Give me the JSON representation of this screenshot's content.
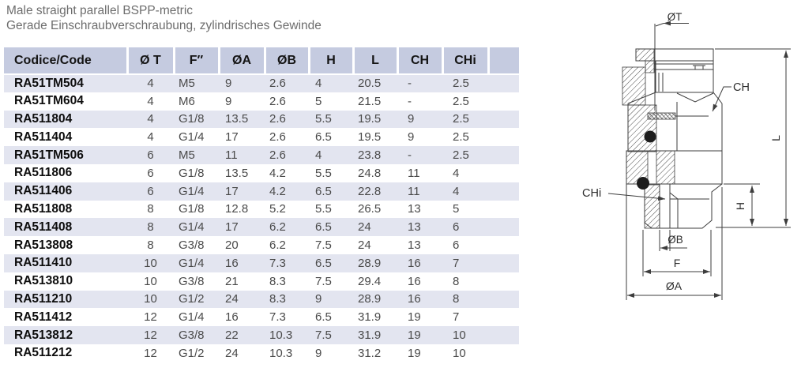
{
  "title": {
    "line1": "Male straight parallel BSPP-metric",
    "line2": "Gerade Einschraubverschraubung, zylindrisches Gewinde"
  },
  "colors": {
    "header_bg": "#c5cbe0",
    "band_bg": "#e3e5f0",
    "title_text": "#6d6d6d",
    "drawing_line": "#3d3d3d"
  },
  "table": {
    "headers": [
      "Codice/Code",
      "Ø T",
      "F″",
      "ØA",
      "ØB",
      "H",
      "L",
      "CH",
      "CHi",
      ""
    ],
    "rows": [
      {
        "code": "RA51TM504",
        "values": [
          "4",
          "M5",
          "9",
          "2.6",
          "4",
          "20.5",
          "-",
          "2.5"
        ]
      },
      {
        "code": "RA51TM604",
        "values": [
          "4",
          "M6",
          "9",
          "2.6",
          "5",
          "21.5",
          "-",
          "2.5"
        ]
      },
      {
        "code": "RA511804",
        "values": [
          "4",
          "G1/8",
          "13.5",
          "2.6",
          "5.5",
          "19.5",
          "9",
          "2.5"
        ]
      },
      {
        "code": "RA511404",
        "values": [
          "4",
          "G1/4",
          "17",
          "2.6",
          "6.5",
          "19.5",
          "9",
          "2.5"
        ]
      },
      {
        "code": "RA51TM506",
        "values": [
          "6",
          "M5",
          "11",
          "2.6",
          "4",
          "23.8",
          "-",
          "2.5"
        ]
      },
      {
        "code": "RA511806",
        "values": [
          "6",
          "G1/8",
          "13.5",
          "4.2",
          "5.5",
          "24.8",
          "11",
          "4"
        ]
      },
      {
        "code": "RA511406",
        "values": [
          "6",
          "G1/4",
          "17",
          "4.2",
          "6.5",
          "22.8",
          "11",
          "4"
        ]
      },
      {
        "code": "RA511808",
        "values": [
          "8",
          "G1/8",
          "12.8",
          "5.2",
          "5.5",
          "26.5",
          "13",
          "5"
        ]
      },
      {
        "code": "RA511408",
        "values": [
          "8",
          "G1/4",
          "17",
          "6.2",
          "6.5",
          "24",
          "13",
          "6"
        ]
      },
      {
        "code": "RA513808",
        "values": [
          "8",
          "G3/8",
          "20",
          "6.2",
          "7.5",
          "24",
          "13",
          "6"
        ]
      },
      {
        "code": "RA511410",
        "values": [
          "10",
          "G1/4",
          "16",
          "7.3",
          "6.5",
          "28.9",
          "16",
          "7"
        ]
      },
      {
        "code": "RA513810",
        "values": [
          "10",
          "G3/8",
          "21",
          "8.3",
          "7.5",
          "29.4",
          "16",
          "8"
        ]
      },
      {
        "code": "RA511210",
        "values": [
          "10",
          "G1/2",
          "24",
          "8.3",
          "9",
          "28.9",
          "16",
          "8"
        ]
      },
      {
        "code": "RA511412",
        "values": [
          "12",
          "G1/4",
          "16",
          "7.3",
          "6.5",
          "31.9",
          "19",
          "7"
        ]
      },
      {
        "code": "RA513812",
        "values": [
          "12",
          "G3/8",
          "22",
          "10.3",
          "7.5",
          "31.9",
          "19",
          "10"
        ]
      },
      {
        "code": "RA511212",
        "values": [
          "12",
          "G1/2",
          "24",
          "10.3",
          "9",
          "31.2",
          "19",
          "10"
        ]
      }
    ]
  },
  "diagram": {
    "labels": {
      "ot": "ØT",
      "ch": "CH",
      "l": "L",
      "chi": "CHi",
      "h": "H",
      "ob": "ØB",
      "f": "F",
      "oa": "ØA"
    }
  }
}
